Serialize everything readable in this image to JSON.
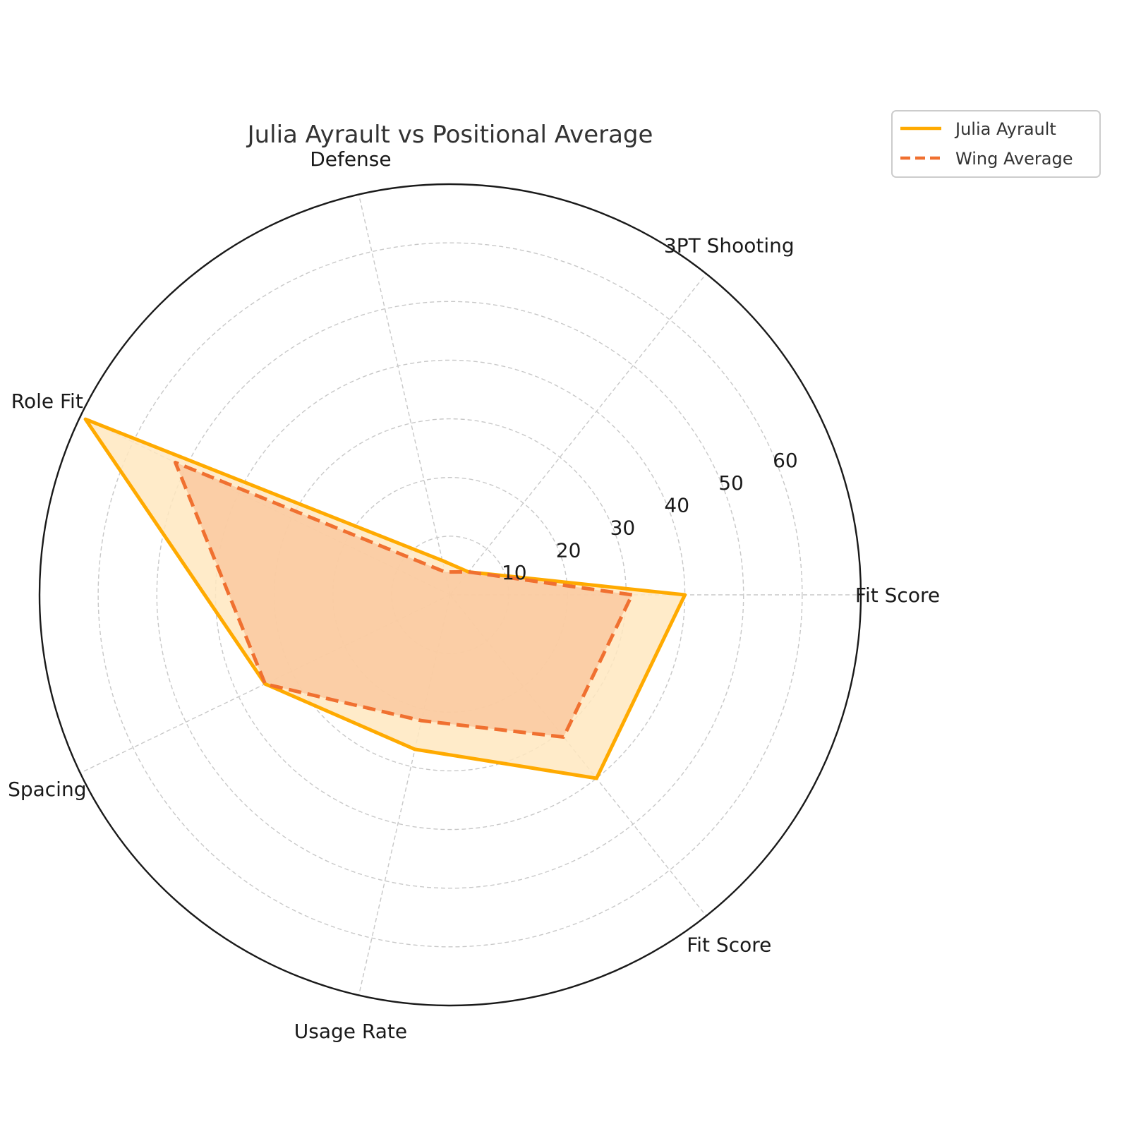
{
  "chart_data": {
    "type": "radar",
    "title": "Julia Ayrault vs Positional Average",
    "categories": [
      "Fit Score",
      "3PT Shooting",
      "Defense",
      "Role Fit",
      "Spacing",
      "Usage Rate",
      "Fit Score"
    ],
    "radial_ticks": [
      10,
      20,
      30,
      40,
      50,
      60
    ],
    "rlim": [
      0,
      70
    ],
    "grid": true,
    "legend_position": "top-right",
    "series": [
      {
        "name": "Julia Ayrault",
        "values": [
          40,
          5,
          6,
          69,
          35,
          27,
          40
        ],
        "color": "#FFAA00",
        "line_style": "solid",
        "fill": "#FFE8BF"
      },
      {
        "name": "Wing Average",
        "values": [
          31,
          5,
          4,
          52,
          35,
          22,
          31
        ],
        "color": "#F07030",
        "line_style": "dashed",
        "fill": "#F9C49A"
      }
    ]
  }
}
